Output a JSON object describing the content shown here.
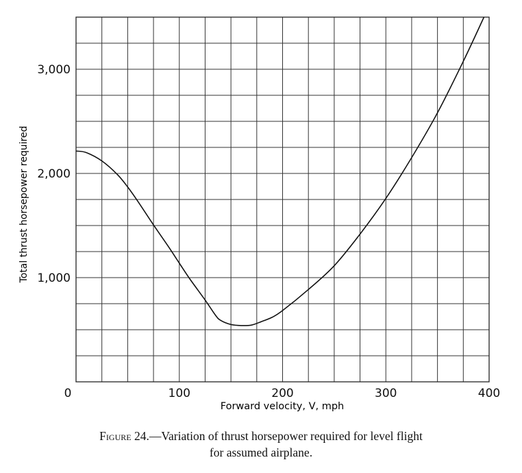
{
  "chart_data": {
    "type": "line",
    "xlabel": "Forward velocity, V, mph",
    "ylabel": "Total thrust horsepower required",
    "xlim": [
      0,
      400
    ],
    "ylim": [
      0,
      3500
    ],
    "x_ticks": [
      0,
      100,
      200,
      300,
      400
    ],
    "x_tick_labels": [
      "0",
      "100",
      "200",
      "300",
      "400"
    ],
    "y_ticks": [
      1000,
      2000,
      3000
    ],
    "y_tick_labels": [
      "1,000",
      "2,000",
      "3,000"
    ],
    "grid": true,
    "grid_step_x": 25,
    "grid_step_y": 250,
    "line_color": "#111111",
    "series": [
      {
        "x": [
          0,
          10,
          25,
          40,
          50,
          60,
          75,
          90,
          100,
          110,
          125,
          135,
          140,
          150,
          160,
          170,
          180,
          190,
          200,
          225,
          250,
          275,
          300,
          325,
          350,
          375,
          395
        ],
        "y": [
          2215,
          2200,
          2120,
          1990,
          1870,
          1730,
          1506,
          1290,
          1139,
          990,
          785,
          640,
          590,
          550,
          540,
          545,
          580,
          620,
          684,
          886,
          1114,
          1418,
          1760,
          2152,
          2582,
          3076,
          3500
        ]
      }
    ]
  },
  "caption": {
    "label": "Figure 24.",
    "text_line1": "—Variation of thrust horsepower required for level flight",
    "text_line2": "for assumed airplane."
  }
}
